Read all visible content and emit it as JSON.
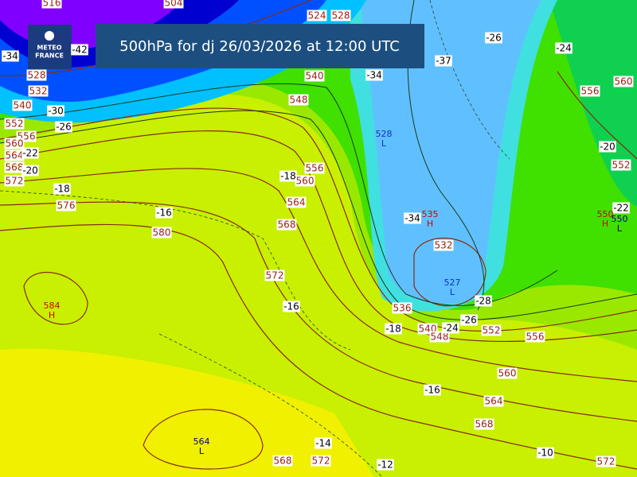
{
  "header": {
    "title": "500hPa for dj 26/03/2026 at 12:00 UTC"
  },
  "logo": {
    "lines": [
      "METEO",
      "FRANCE"
    ]
  },
  "isohypse_labels": [
    "516",
    "504",
    "528",
    "532",
    "540",
    "552",
    "556",
    "560",
    "564",
    "568",
    "572",
    "576",
    "580",
    "572",
    "568",
    "564",
    "560",
    "556",
    "548",
    "540",
    "524",
    "528",
    "560",
    "556",
    "552",
    "532",
    "536",
    "540",
    "548",
    "552",
    "556",
    "560",
    "564",
    "568",
    "572",
    "572",
    "568"
  ],
  "temperature_labels": [
    "-42",
    "-34",
    "-30",
    "-26",
    "-22",
    "-20",
    "-18",
    "-16",
    "-16",
    "-18",
    "-24",
    "-26",
    "-28",
    "-34",
    "-34",
    "-37",
    "-26",
    "-24",
    "-20",
    "-22",
    "-16",
    "-14",
    "-12",
    "-10",
    "-18"
  ],
  "centers": [
    {
      "value": "584",
      "type": "H"
    },
    {
      "value": "564",
      "type": "L"
    },
    {
      "value": "535",
      "type": "H"
    },
    {
      "value": "527",
      "type": "L"
    },
    {
      "value": "528",
      "type": "L"
    },
    {
      "value": "550",
      "type": "H"
    },
    {
      "value": "550",
      "type": "L"
    }
  ]
}
